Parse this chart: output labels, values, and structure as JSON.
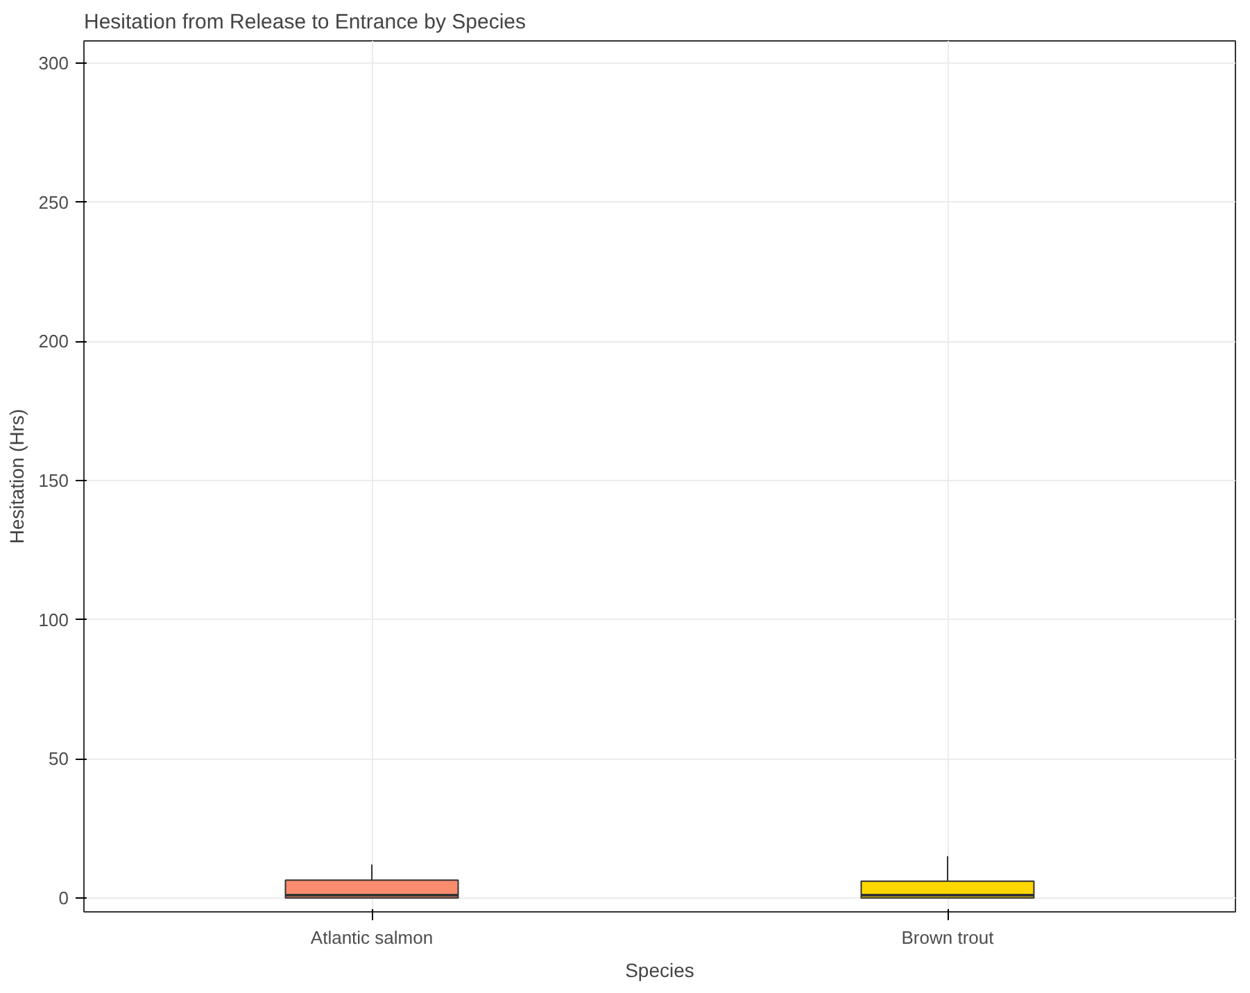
{
  "chart_data": {
    "type": "box",
    "title": "Hesitation from Release to Entrance by Species",
    "xlabel": "Species",
    "ylabel": "Hesitation (Hrs)",
    "categories": [
      "Atlantic salmon",
      "Brown trout"
    ],
    "colors": [
      "#fa8c6e",
      "#ffd700"
    ],
    "boxes": [
      {
        "low": 0,
        "q1": 0,
        "median": 1,
        "q3": 6.4,
        "high": 12
      },
      {
        "low": 0,
        "q1": 0,
        "median": 1,
        "q3": 6,
        "high": 15
      }
    ],
    "ylim": [
      -5,
      308
    ],
    "yticks": [
      0,
      50,
      100,
      150,
      200,
      250,
      300
    ],
    "grid": true
  }
}
